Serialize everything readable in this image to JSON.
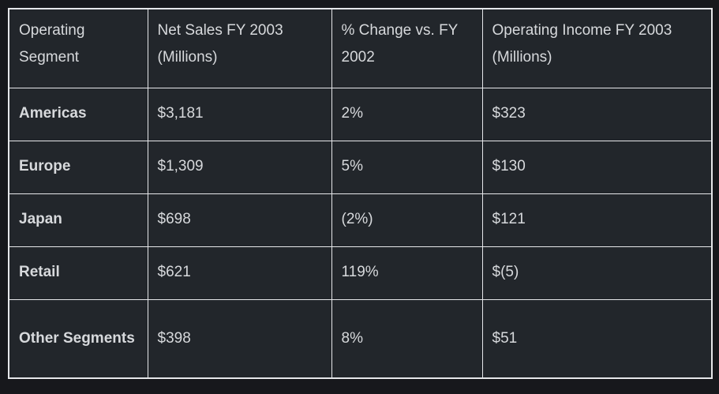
{
  "colors": {
    "page_background": "#17181c",
    "cell_background": "#22262b",
    "border": "#e6e7ea",
    "text": "#d7d9dc"
  },
  "table": {
    "columns": [
      {
        "label": "Operating Segment"
      },
      {
        "label": "Net Sales FY 2003 (Millions)"
      },
      {
        "label": "% Change vs. FY 2002"
      },
      {
        "label": "Operating Income FY 2003 (Millions)"
      }
    ],
    "rows": [
      {
        "segment": "Americas",
        "net_sales": "$3,181",
        "pct_change": "2%",
        "operating_income": "$323"
      },
      {
        "segment": "Europe",
        "net_sales": "$1,309",
        "pct_change": "5%",
        "operating_income": "$130"
      },
      {
        "segment": "Japan",
        "net_sales": "$698",
        "pct_change": "(2%)",
        "operating_income": "$121"
      },
      {
        "segment": "Retail",
        "net_sales": "$621",
        "pct_change": "119%",
        "operating_income": "$(5)"
      },
      {
        "segment": "Other Segments",
        "net_sales": "$398",
        "pct_change": "8%",
        "operating_income": "$51"
      }
    ]
  }
}
